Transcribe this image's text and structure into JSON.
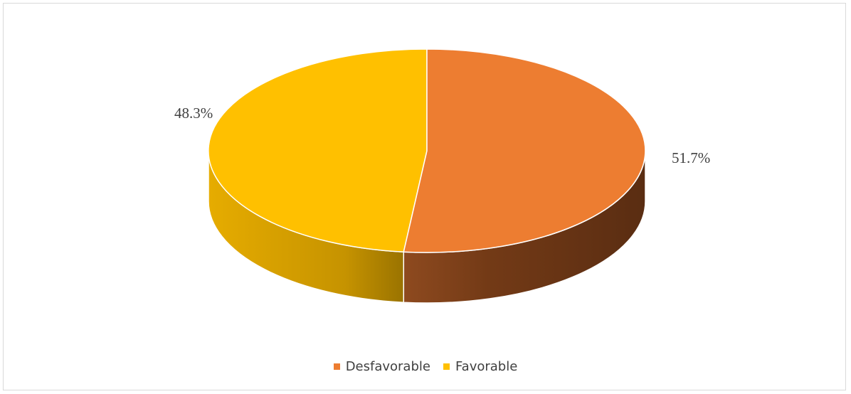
{
  "chart_data": {
    "type": "pie",
    "categories": [
      "Desfavorable",
      "Favorable"
    ],
    "values": [
      51.7,
      48.3
    ],
    "labels": [
      "51.7%",
      "48.3%"
    ],
    "colors": [
      "#ED7D31",
      "#FFC000"
    ],
    "legend_position": "bottom",
    "style": "3d"
  }
}
